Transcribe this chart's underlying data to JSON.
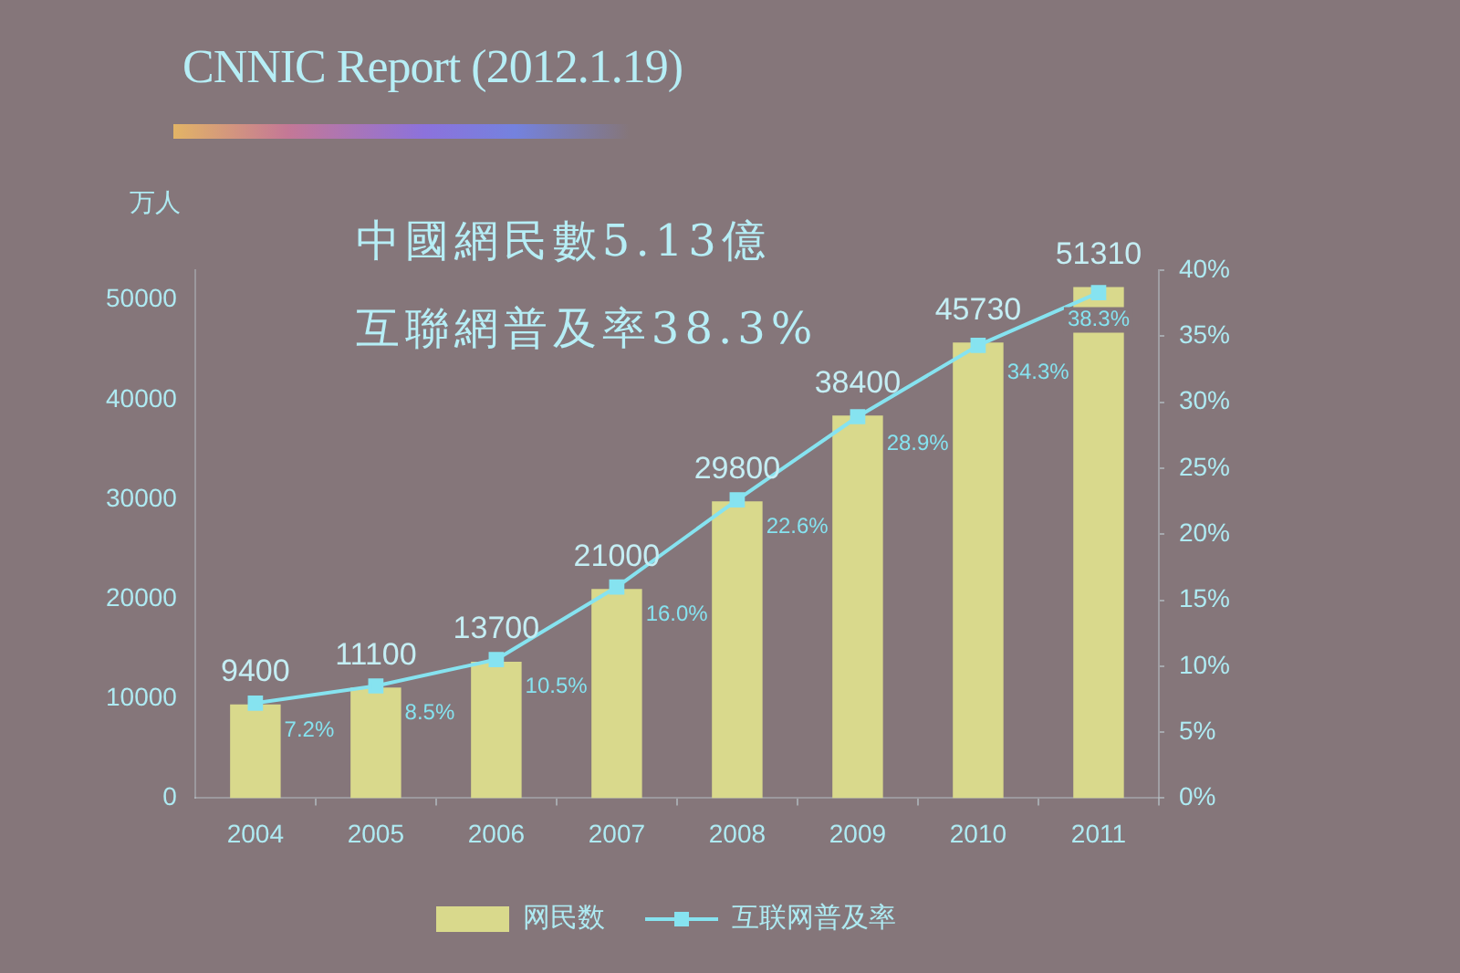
{
  "chart_data": {
    "type": "bar",
    "title": "CNNIC Report (2012.1.19)",
    "ylabel": "万人",
    "annotations": [
      "中國網民數5.13億",
      "互聯網普及率38.3%"
    ],
    "categories": [
      "2004",
      "2005",
      "2006",
      "2007",
      "2008",
      "2009",
      "2010",
      "2011"
    ],
    "series": [
      {
        "name": "网民数",
        "color": "#d9d98c",
        "values": [
          9400,
          11100,
          13700,
          21000,
          29800,
          38400,
          45730,
          51310
        ],
        "value_labels": [
          "9400",
          "11100",
          "13700",
          "21000",
          "29800",
          "38400",
          "45730",
          "51310"
        ]
      },
      {
        "name": "互联网普及率",
        "type": "line",
        "axis": "y2",
        "color": "#86e3f0",
        "marker": "square",
        "values": [
          7.2,
          8.5,
          10.5,
          16.0,
          22.6,
          28.9,
          34.3,
          38.3
        ],
        "value_labels": [
          "7.2%",
          "8.5%",
          "10.5%",
          "16.0%",
          "22.6%",
          "28.9%",
          "34.3%",
          "38.3%"
        ]
      }
    ],
    "ylim": [
      0,
      53000
    ],
    "yticks": [
      0,
      10000,
      20000,
      30000,
      40000,
      50000
    ],
    "y2lim": [
      0,
      40
    ],
    "y2ticks": [
      {
        "value": 0,
        "label": "0%"
      },
      {
        "value": 5,
        "label": "5%"
      },
      {
        "value": 10,
        "label": "10%"
      },
      {
        "value": 15,
        "label": "15%"
      },
      {
        "value": 20,
        "label": "20%"
      },
      {
        "value": 25,
        "label": "25%"
      },
      {
        "value": 30,
        "label": "30%"
      },
      {
        "value": 35,
        "label": "35%"
      },
      {
        "value": 40,
        "label": "40%"
      }
    ],
    "legend": "bottom"
  }
}
